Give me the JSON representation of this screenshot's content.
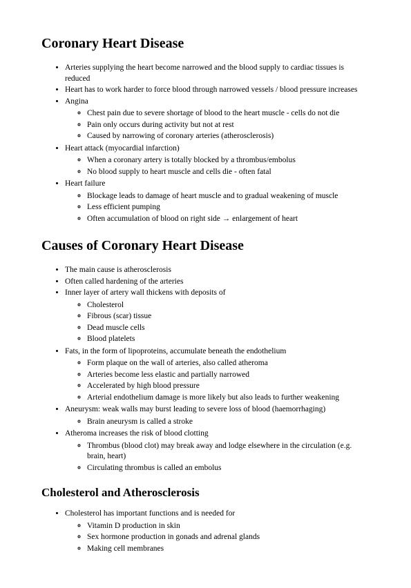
{
  "title1": "Coronary Heart Disease",
  "list1": {
    "i0": "Arteries supplying the heart become narrowed and the blood supply to cardiac tissues is reduced",
    "i1": "Heart has to work harder to force blood through narrowed vessels / blood pressure increases",
    "i2": "Angina",
    "i2sub": {
      "s0": "Chest pain due to severe shortage of blood to the heart muscle - cells do not die",
      "s1": "Pain only occurs during activity but not at rest",
      "s2": "Caused by narrowing of coronary arteries (atherosclerosis)"
    },
    "i3": "Heart attack (myocardial infarction)",
    "i3sub": {
      "s0": "When a coronary artery is totally blocked by a thrombus/embolus",
      "s1": "No blood supply to heart muscle and cells die - often fatal"
    },
    "i4": "Heart failure",
    "i4sub": {
      "s0": "Blockage leads to damage of heart muscle and to gradual weakening of muscle",
      "s1": "Less efficient pumping",
      "s2": "Often accumulation of blood on right side → enlargement of heart"
    }
  },
  "title2": "Causes of Coronary Heart Disease",
  "list2": {
    "i0": "The main cause is atherosclerosis",
    "i1": "Often called hardening of the arteries",
    "i2": "Inner layer of artery wall thickens with deposits of",
    "i2sub": {
      "s0": "Cholesterol",
      "s1": "Fibrous (scar) tissue",
      "s2": "Dead muscle cells",
      "s3": "Blood platelets"
    },
    "i3": "Fats, in the form of lipoproteins, accumulate beneath the endothelium",
    "i3sub": {
      "s0": "Form plaque on the wall of arteries, also called atheroma",
      "s1": "Arteries become less elastic and partially narrowed",
      "s2": "Accelerated by high blood pressure",
      "s3": "Arterial endothelium damage is more likely but also leads to further weakening"
    },
    "i4": "Aneurysm: weak walls may burst leading to severe loss of blood (haemorrhaging)",
    "i4sub": {
      "s0": "Brain aneurysm is called a stroke"
    },
    "i5": "Atheroma increases the risk of blood clotting",
    "i5sub": {
      "s0": "Thrombus (blood clot) may break away and lodge elsewhere in the circulation (e.g. brain, heart)",
      "s1": "Circulating thrombus is called an embolus"
    }
  },
  "title3": "Cholesterol and Atherosclerosis",
  "list3": {
    "i0": "Cholesterol has important functions and is needed for",
    "i0sub": {
      "s0": "Vitamin D production in skin",
      "s1": "Sex hormone production in gonads and adrenal glands",
      "s2": "Making cell membranes"
    }
  }
}
